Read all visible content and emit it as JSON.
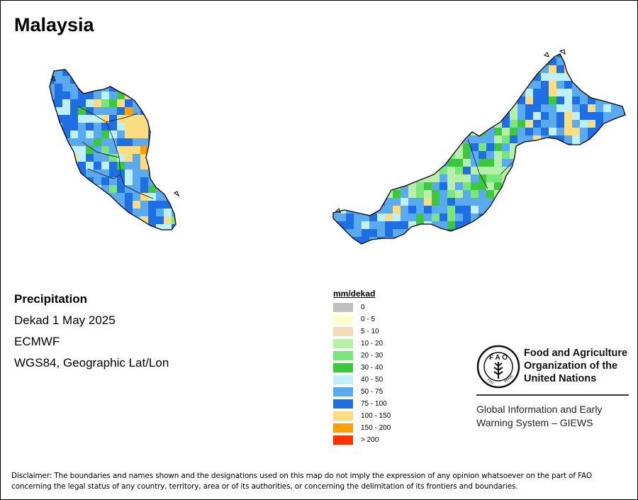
{
  "map_title": "Malaysia",
  "info": {
    "variable": "Precipitation",
    "period": "Dekad 1 May 2025",
    "model": "ECMWF",
    "projection": "WGS84, Geographic Lat/Lon"
  },
  "legend": {
    "title": "mm/dekad",
    "classes": [
      {
        "label": "0",
        "color": "#c0c0c0"
      },
      {
        "label": "0 - 5",
        "color": "#ffffcc"
      },
      {
        "label": "5 - 10",
        "color": "#f0dcb8"
      },
      {
        "label": "10 - 20",
        "color": "#b4f0a8"
      },
      {
        "label": "20 - 30",
        "color": "#78e678"
      },
      {
        "label": "30 - 40",
        "color": "#3cc83c"
      },
      {
        "label": "40 - 50",
        "color": "#bef0fa"
      },
      {
        "label": "50 - 75",
        "color": "#5aaaf0"
      },
      {
        "label": "75 - 100",
        "color": "#1e6ee6"
      },
      {
        "label": "100 - 150",
        "color": "#fadc82"
      },
      {
        "label": "150 - 200",
        "color": "#ffa000"
      },
      {
        "label": "> 200",
        "color": "#ff3200"
      }
    ]
  },
  "organization": {
    "name_line1": "Food and Agriculture",
    "name_line2": "Organization of the",
    "name_line3": "United Nations",
    "system_line1": "Global Information and Early",
    "system_line2": "Warning System – GIEWS"
  },
  "disclaimer": "Disclaimer: The boundaries and names shown and the designations used on this map do not imply the expression of any opinion whatsoever on the part of FAO concerning the legal status of any country, territory, area or of its authorities, or concerning the delimitation of its frontiers and boundaries."
}
